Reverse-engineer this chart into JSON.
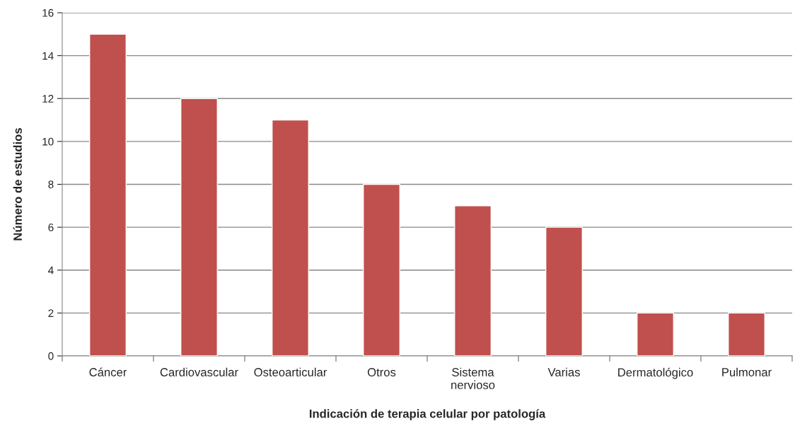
{
  "chart_data": {
    "type": "bar",
    "xlabel": "Indicación de terapia celular por patología",
    "ylabel": "Número de estudios",
    "categories": [
      "Cáncer",
      "Cardiovascular",
      "Osteoarticular",
      "Otros",
      "Sistema nervioso",
      "Varias",
      "Dermatológico",
      "Pulmonar"
    ],
    "values": [
      15,
      12,
      11,
      8,
      7,
      6,
      2,
      2
    ],
    "color": "#c0504d",
    "ylim": [
      0,
      16
    ],
    "yticks": [
      0,
      2,
      4,
      6,
      8,
      10,
      12,
      14,
      16
    ],
    "grid": "y",
    "legend": false
  }
}
